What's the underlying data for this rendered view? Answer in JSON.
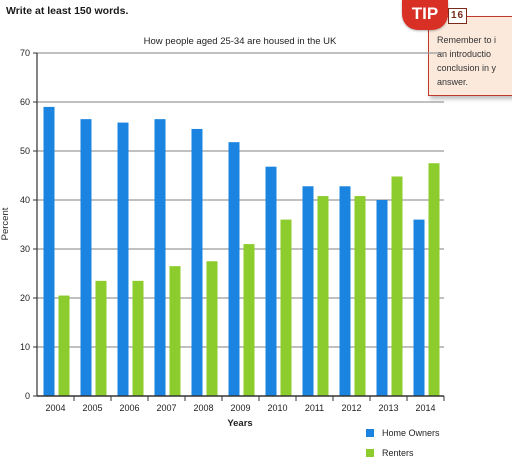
{
  "header": {
    "instruction": "Write at least 150 words."
  },
  "tip": {
    "badge": "TIP",
    "number": "16",
    "lines": [
      "Remember to i",
      "an introductio",
      "conclusion in y",
      "answer."
    ],
    "badge_color": "#d93025",
    "box_color": "#fbe9dc"
  },
  "chart_data": {
    "type": "bar",
    "title": "How people aged 25-34 are housed in the UK",
    "xlabel": "Years",
    "ylabel": "Percent",
    "categories": [
      "2004",
      "2005",
      "2006",
      "2007",
      "2008",
      "2009",
      "2010",
      "2011",
      "2012",
      "2013",
      "2014"
    ],
    "series": [
      {
        "name": "Home Owners",
        "color": "#1a84e0",
        "values": [
          59,
          56.5,
          55.8,
          56.5,
          54.5,
          51.8,
          46.8,
          42.8,
          42.8,
          40,
          36
        ]
      },
      {
        "name": "Renters",
        "color": "#8ccc2c",
        "values": [
          20.5,
          23.5,
          23.5,
          26.5,
          27.5,
          31,
          36,
          40.8,
          40.8,
          44.8,
          47.5
        ]
      }
    ],
    "ylim": [
      0,
      70
    ],
    "yticks": [
      0,
      10,
      20,
      30,
      40,
      50,
      60,
      70
    ],
    "grid": true,
    "legend_position": "bottom-right"
  }
}
